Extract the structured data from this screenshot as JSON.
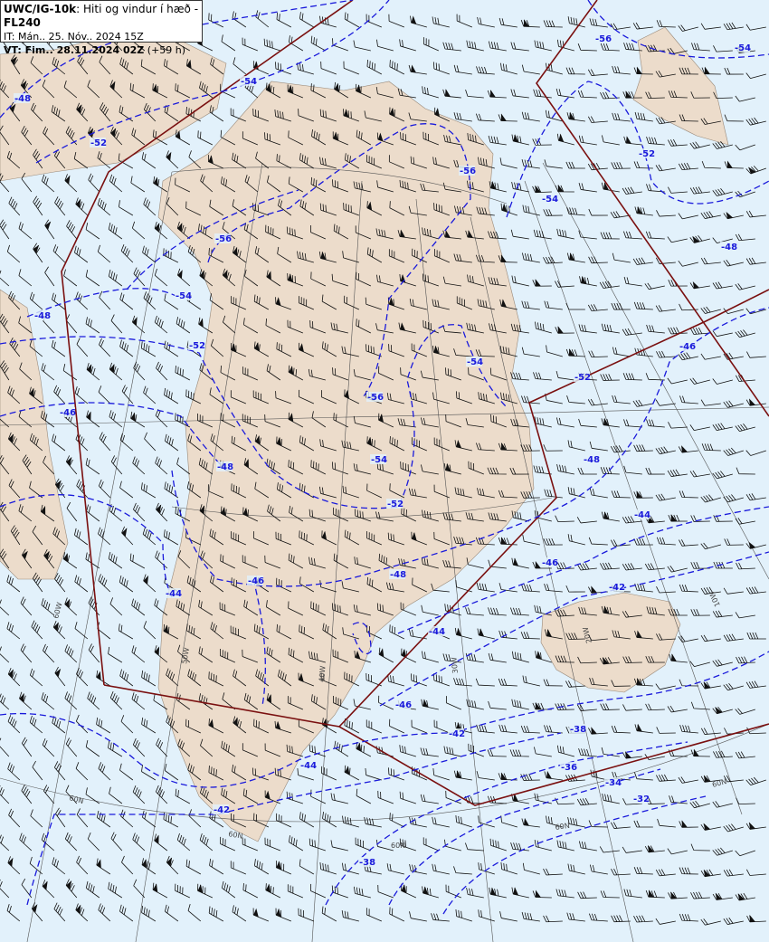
{
  "header": {
    "product": "UWC/IG-10k",
    "description": ": Hiti og vindur í hæð - ",
    "level": "FL240",
    "issue_time": "IT: Mán.. 25. Nóv.. 2024 15Z",
    "valid_prefix": "VT: Fim.. 28.11.2024 02Z",
    "valid_offset": " (+59 h)"
  },
  "colors": {
    "sea": "#e2f1fb",
    "land": "#ecdccb",
    "contour": "#1a1adb",
    "boundary": "#7a1010",
    "graticule": "#555555",
    "barb": "#111111"
  },
  "contour_labels": [
    "-48",
    "-52",
    "-54",
    "-56",
    "-54",
    "-56",
    "-54",
    "-52",
    "-48",
    "-56",
    "-54",
    "-48",
    "-52",
    "-46",
    "-54",
    "-52",
    "-56",
    "-46",
    "-48",
    "-54",
    "-48",
    "-52",
    "-44",
    "-46",
    "-48",
    "-42",
    "-46",
    "-44",
    "-44",
    "-46",
    "-42",
    "-38",
    "-36",
    "-34",
    "-32",
    "-44",
    "-42",
    "-38"
  ],
  "graticule_labels": [
    "60W",
    "50W",
    "40W",
    "30W",
    "20W",
    "10W",
    "60N",
    "60N",
    "60N",
    "60N",
    "60N"
  ],
  "legend": {
    "quantity": "wind barbs and isotherms (°C)"
  }
}
